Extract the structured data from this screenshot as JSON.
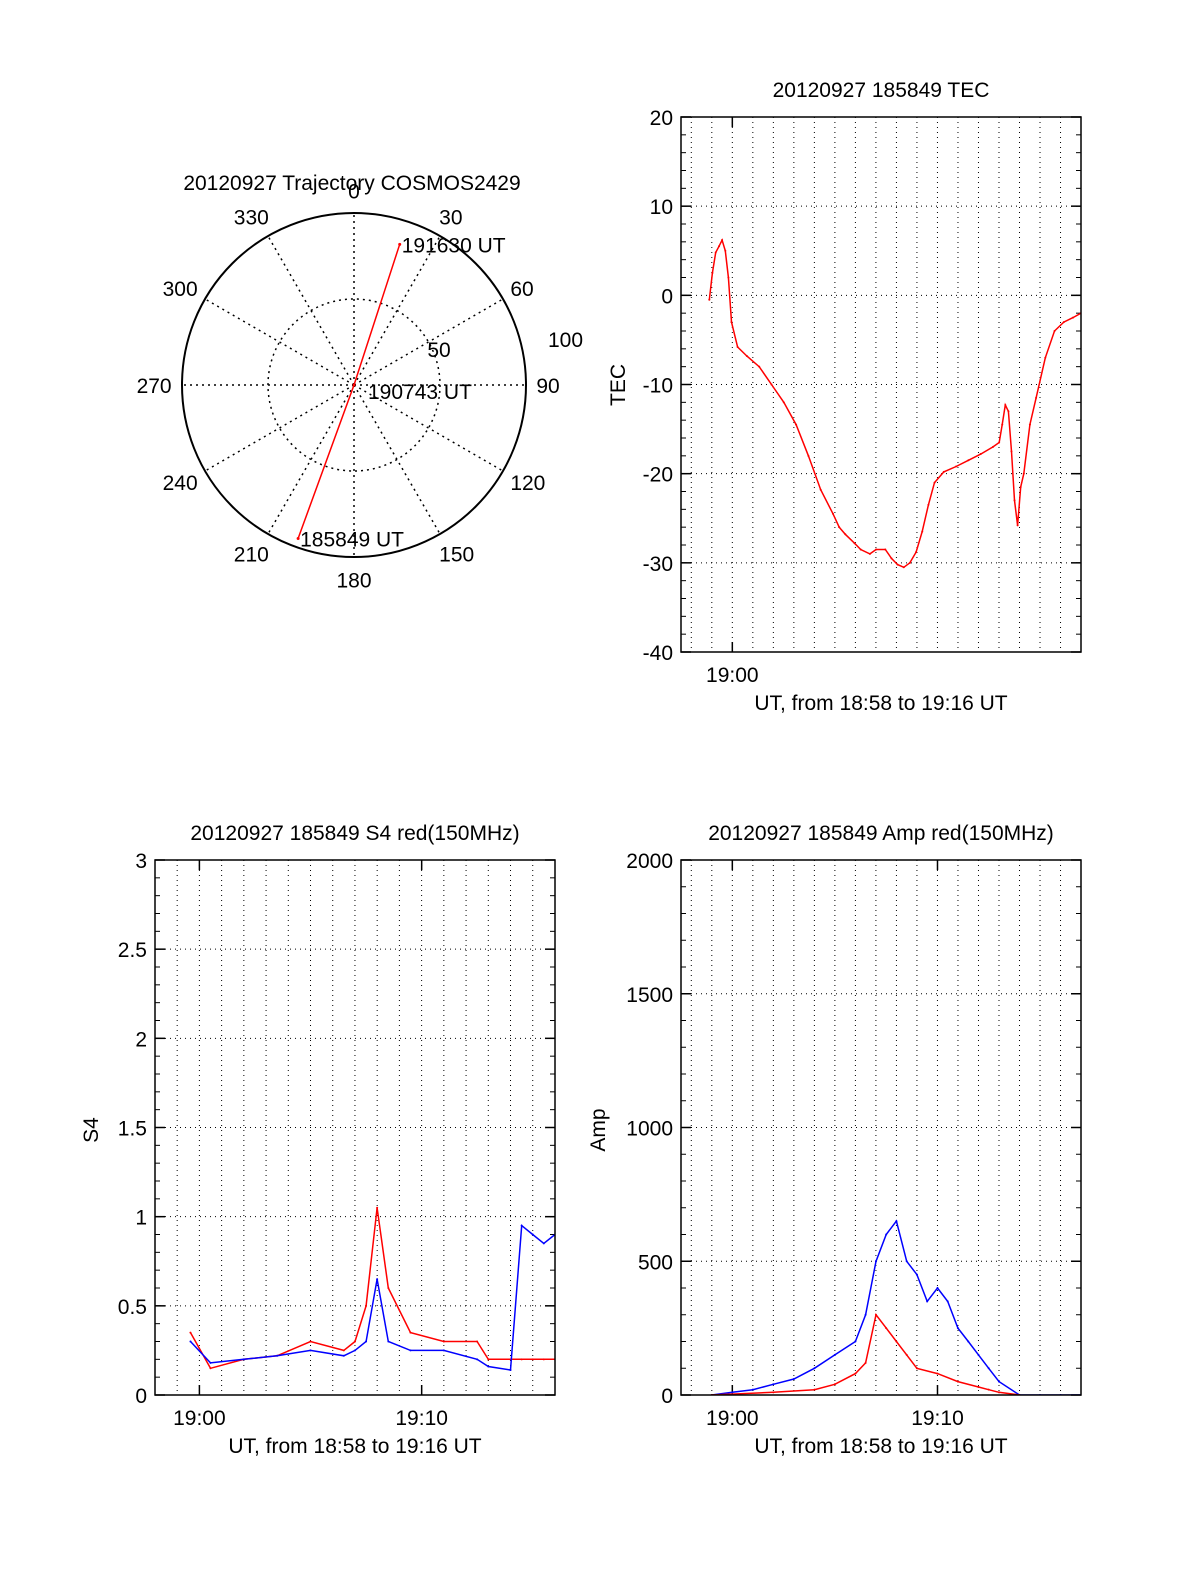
{
  "colors": {
    "red": "#ff0000",
    "blue": "#0000ff",
    "grid": "#000000",
    "axis": "#000000"
  },
  "chart_data": [
    {
      "id": "trajectory",
      "type": "scatter",
      "projection": "polar",
      "title": "20120927 Trajectory COSMOS2429",
      "azimuth_labels": [
        "0",
        "30",
        "60",
        "90",
        "120",
        "150",
        "180",
        "210",
        "240",
        "270",
        "300",
        "330"
      ],
      "azimuth_values": [
        0,
        30,
        60,
        90,
        120,
        150,
        180,
        210,
        240,
        270,
        300,
        330
      ],
      "radial_labels": [
        "50",
        "100"
      ],
      "radial_values": [
        50,
        100
      ],
      "radial_max": 100,
      "series": [
        {
          "color": "#ff0000",
          "points": [
            [
              18,
              86
            ],
            [
              0,
              0
            ],
            [
              200,
              95
            ]
          ]
        }
      ],
      "annotations": [
        {
          "text": "191630 UT",
          "az": 18,
          "r": 86
        },
        {
          "text": "190743 UT",
          "az": 0,
          "r": 0
        },
        {
          "text": "185849 UT",
          "az": 200,
          "r": 95
        }
      ]
    },
    {
      "id": "tec",
      "type": "line",
      "title": "20120927 185849 TEC",
      "xlabel": "UT, from 18:58 to 19:16 UT",
      "ylabel": "TEC",
      "xlim": [
        18.9583,
        19.2833
      ],
      "ylim": [
        -40,
        20
      ],
      "x_ticks": [
        {
          "value": 19.0,
          "label": "19:00"
        }
      ],
      "y_ticks": [
        {
          "value": -40,
          "label": "-40"
        },
        {
          "value": -30,
          "label": "-30"
        },
        {
          "value": -20,
          "label": "-20"
        },
        {
          "value": -10,
          "label": "-10"
        },
        {
          "value": 0,
          "label": "0"
        },
        {
          "value": 10,
          "label": "10"
        },
        {
          "value": 20,
          "label": "20"
        }
      ],
      "grid": true,
      "series": [
        {
          "color": "#ff0000",
          "x": [
            18.9813,
            18.9838,
            18.9865,
            18.9892,
            18.9917,
            18.9943,
            18.9968,
            18.9993,
            19.0043,
            19.0118,
            19.0218,
            19.0318,
            19.0418,
            19.0518,
            19.0618,
            19.0718,
            19.0818,
            19.0868,
            19.0918,
            19.0993,
            19.1043,
            19.1118,
            19.1168,
            19.1243,
            19.1293,
            19.1343,
            19.1393,
            19.1443,
            19.1493,
            19.1543,
            19.1593,
            19.1643,
            19.1718,
            19.1818,
            19.1918,
            19.2018,
            19.2118,
            19.2168,
            19.2193,
            19.2218,
            19.2243,
            19.2268,
            19.2293,
            19.2318,
            19.2343,
            19.2368,
            19.2418,
            19.2468,
            19.2543,
            19.2618,
            19.2693,
            19.2768,
            19.2833
          ],
          "y": [
            -0.5,
            2.5,
            4.8,
            5.5,
            6.2,
            5.0,
            2.0,
            -3.0,
            -5.8,
            -6.8,
            -8.0,
            -10.0,
            -12.0,
            -14.5,
            -18.0,
            -21.8,
            -24.5,
            -26.0,
            -26.8,
            -27.8,
            -28.5,
            -29.0,
            -28.5,
            -28.5,
            -29.5,
            -30.2,
            -30.5,
            -30.0,
            -28.8,
            -26.5,
            -23.5,
            -21.0,
            -19.8,
            -19.2,
            -18.5,
            -17.8,
            -17.0,
            -16.5,
            -14.5,
            -12.3,
            -13.0,
            -17.5,
            -23.0,
            -25.8,
            -21.5,
            -20.0,
            -14.5,
            -11.5,
            -7.0,
            -4.0,
            -3.0,
            -2.5,
            -2.0
          ]
        }
      ]
    },
    {
      "id": "s4",
      "type": "line",
      "title": "20120927 185849 S4 red(150MHz)",
      "xlabel": "UT, from 18:58 to 19:16 UT",
      "ylabel": "S4",
      "xlim": [
        18.9667,
        19.2667
      ],
      "ylim": [
        0,
        3
      ],
      "x_ticks": [
        {
          "value": 19.0,
          "label": "19:00"
        },
        {
          "value": 19.1667,
          "label": "19:10"
        }
      ],
      "y_ticks": [
        {
          "value": 0,
          "label": "0"
        },
        {
          "value": 0.5,
          "label": "0.5"
        },
        {
          "value": 1,
          "label": "1"
        },
        {
          "value": 1.5,
          "label": "1.5"
        },
        {
          "value": 2,
          "label": "2"
        },
        {
          "value": 2.5,
          "label": "2.5"
        },
        {
          "value": 3,
          "label": "3"
        }
      ],
      "grid": true,
      "series": [
        {
          "color": "#ff0000",
          "x": [
            18.9933,
            19.0083,
            19.0333,
            19.0583,
            19.0833,
            19.1083,
            19.1167,
            19.125,
            19.1333,
            19.1417,
            19.1583,
            19.1833,
            19.2083,
            19.2167,
            19.2333,
            19.2417,
            19.25,
            19.2583,
            19.2667
          ],
          "y": [
            0.35,
            0.15,
            0.2,
            0.22,
            0.3,
            0.25,
            0.3,
            0.5,
            1.05,
            0.6,
            0.35,
            0.3,
            0.3,
            0.2,
            0.2,
            0.2,
            0.2,
            0.2,
            0.2
          ]
        },
        {
          "color": "#0000ff",
          "x": [
            18.9933,
            19.0083,
            19.0333,
            19.0583,
            19.0833,
            19.1083,
            19.1167,
            19.125,
            19.1333,
            19.1417,
            19.1583,
            19.1833,
            19.2083,
            19.2167,
            19.2333,
            19.2417,
            19.25,
            19.2583,
            19.2667
          ],
          "y": [
            0.3,
            0.18,
            0.2,
            0.22,
            0.25,
            0.22,
            0.25,
            0.3,
            0.65,
            0.3,
            0.25,
            0.25,
            0.2,
            0.16,
            0.14,
            0.95,
            0.9,
            0.85,
            0.9
          ]
        }
      ]
    },
    {
      "id": "amp",
      "type": "line",
      "title": "20120927 185849 Amp red(150MHz)",
      "xlabel": "UT, from 18:58 to 19:16 UT",
      "ylabel": "Amp",
      "xlim": [
        18.9583,
        19.2833
      ],
      "ylim": [
        0,
        2000
      ],
      "x_ticks": [
        {
          "value": 19.0,
          "label": "19:00"
        },
        {
          "value": 19.1667,
          "label": "19:10"
        }
      ],
      "y_ticks": [
        {
          "value": 0,
          "label": "0"
        },
        {
          "value": 500,
          "label": "500"
        },
        {
          "value": 1000,
          "label": "1000"
        },
        {
          "value": 1500,
          "label": "1500"
        },
        {
          "value": 2000,
          "label": "2000"
        }
      ],
      "grid": true,
      "series": [
        {
          "color": "#0000ff",
          "x": [
            18.9833,
            19.0,
            19.0167,
            19.0333,
            19.05,
            19.0667,
            19.0833,
            19.1,
            19.1083,
            19.1167,
            19.125,
            19.1333,
            19.1417,
            19.15,
            19.1583,
            19.1667,
            19.175,
            19.1833,
            19.1917,
            19.2,
            19.2083,
            19.2167,
            19.2333,
            19.25,
            19.2667,
            19.2833
          ],
          "y": [
            0,
            10,
            20,
            40,
            60,
            100,
            150,
            200,
            300,
            500,
            600,
            650,
            500,
            450,
            350,
            400,
            350,
            250,
            200,
            150,
            100,
            50,
            0,
            0,
            0,
            0
          ]
        },
        {
          "color": "#ff0000",
          "x": [
            18.9833,
            19.0333,
            19.0667,
            19.0833,
            19.1,
            19.1083,
            19.1167,
            19.125,
            19.1333,
            19.1417,
            19.15,
            19.1667,
            19.1833,
            19.2,
            19.2083,
            19.2167,
            19.2333
          ],
          "y": [
            0,
            10,
            20,
            40,
            80,
            120,
            300,
            250,
            200,
            150,
            100,
            80,
            50,
            30,
            20,
            10,
            0
          ]
        }
      ]
    }
  ]
}
